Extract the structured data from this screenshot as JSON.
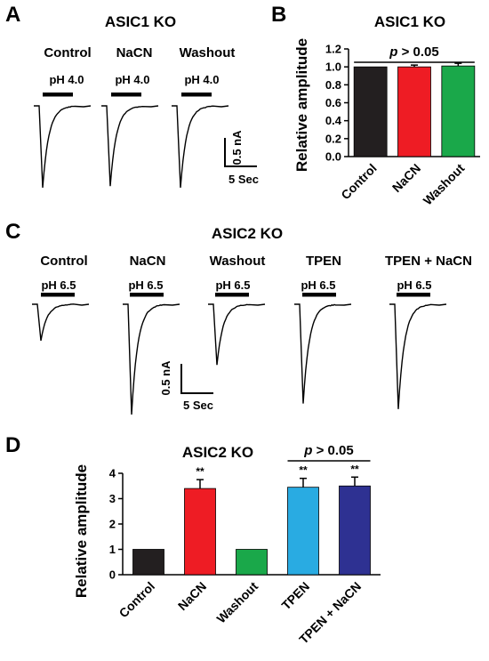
{
  "panel_a": {
    "letter": "A",
    "title": "ASIC1 KO",
    "conditions": [
      "Control",
      "NaCN",
      "Washout"
    ],
    "stimulus": [
      "pH 4.0",
      "pH 4.0",
      "pH 4.0"
    ],
    "scale_current": "0.5 nA",
    "scale_time": "5 Sec",
    "peak_relative": [
      1.0,
      0.98,
      1.0
    ]
  },
  "panel_c": {
    "letter": "C",
    "title": "ASIC2 KO",
    "conditions": [
      "Control",
      "NaCN",
      "Washout",
      "TPEN",
      "TPEN + NaCN"
    ],
    "stimulus": [
      "pH 6.5",
      "pH 6.5",
      "pH 6.5",
      "pH 6.5",
      "pH 6.5"
    ],
    "scale_current": "0.5 nA",
    "scale_time": "5 Sec",
    "peak_relative": [
      0.33,
      1.0,
      0.55,
      0.9,
      0.95
    ]
  },
  "chart_data": [
    {
      "panel": "B",
      "type": "bar",
      "title": "ASIC1 KO",
      "ylabel": "Relative amplitude",
      "xlabel": "",
      "categories": [
        "Control",
        "NaCN",
        "Washout"
      ],
      "values": [
        1.0,
        1.0,
        1.01
      ],
      "errors": [
        0,
        0.02,
        0.03
      ],
      "colors": [
        "#231f20",
        "#ee1c24",
        "#1aa84a"
      ],
      "ylim": [
        0,
        1.2
      ],
      "yticks": [
        "0.0",
        "0.2",
        "0.4",
        "0.6",
        "0.8",
        "1.0",
        "1.2"
      ],
      "annotation": "p > 0.05",
      "significance": [
        "",
        "",
        ""
      ],
      "grid": false
    },
    {
      "panel": "D",
      "type": "bar",
      "title": "ASIC2 KO",
      "ylabel": "Relative amplitude",
      "xlabel": "",
      "categories": [
        "Control",
        "NaCN",
        "Washout",
        "TPEN",
        "TPEN + NaCN"
      ],
      "values": [
        1.0,
        3.4,
        1.0,
        3.45,
        3.5
      ],
      "errors": [
        0,
        0.35,
        0,
        0.35,
        0.35
      ],
      "colors": [
        "#231f20",
        "#ee1c24",
        "#1aa84a",
        "#29abe2",
        "#2e3192"
      ],
      "ylim": [
        0,
        4
      ],
      "yticks": [
        "0",
        "1",
        "2",
        "3",
        "4"
      ],
      "annotation": "p > 0.05",
      "significance": [
        "",
        "**",
        "",
        "**",
        "**"
      ],
      "grid": false
    }
  ]
}
